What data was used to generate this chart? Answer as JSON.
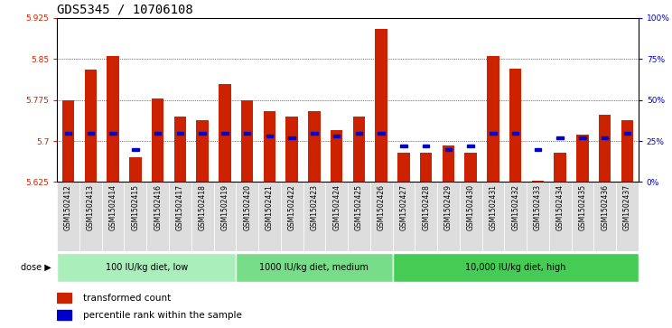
{
  "title": "GDS5345 / 10706108",
  "samples": [
    "GSM1502412",
    "GSM1502413",
    "GSM1502414",
    "GSM1502415",
    "GSM1502416",
    "GSM1502417",
    "GSM1502418",
    "GSM1502419",
    "GSM1502420",
    "GSM1502421",
    "GSM1502422",
    "GSM1502423",
    "GSM1502424",
    "GSM1502425",
    "GSM1502426",
    "GSM1502427",
    "GSM1502428",
    "GSM1502429",
    "GSM1502430",
    "GSM1502431",
    "GSM1502432",
    "GSM1502433",
    "GSM1502434",
    "GSM1502435",
    "GSM1502436",
    "GSM1502437"
  ],
  "bar_values": [
    5.775,
    5.83,
    5.855,
    5.67,
    5.778,
    5.745,
    5.738,
    5.805,
    5.775,
    5.755,
    5.745,
    5.755,
    5.72,
    5.745,
    5.905,
    5.678,
    5.678,
    5.692,
    5.678,
    5.855,
    5.833,
    5.628,
    5.678,
    5.712,
    5.748,
    5.738
  ],
  "percentile_values": [
    30,
    30,
    30,
    20,
    30,
    30,
    30,
    30,
    30,
    28,
    27,
    30,
    28,
    30,
    30,
    22,
    22,
    20,
    22,
    30,
    30,
    20,
    27,
    27,
    27,
    30
  ],
  "groups": [
    {
      "label": "100 IU/kg diet, low",
      "start": 0,
      "end": 8
    },
    {
      "label": "1000 IU/kg diet, medium",
      "start": 8,
      "end": 15
    },
    {
      "label": "10,000 IU/kg diet, high",
      "start": 15,
      "end": 26
    }
  ],
  "group_colors": [
    "#99EE99",
    "#66DD66",
    "#33BB33"
  ],
  "ymin": 5.625,
  "ymax": 5.925,
  "y_ticks": [
    5.625,
    5.7,
    5.775,
    5.85,
    5.925
  ],
  "right_ticks": [
    0,
    25,
    50,
    75,
    100
  ],
  "bar_color": "#CC2200",
  "blue_color": "#0000CC",
  "bar_bottom": 5.625,
  "background_plot": "#FFFFFF",
  "label_bg_color": "#DDDDDD",
  "title_fontsize": 10,
  "tick_fontsize": 6.5,
  "label_fontsize": 6.5,
  "axis_label_color_left": "#CC2200",
  "axis_label_color_right": "#0000CC"
}
